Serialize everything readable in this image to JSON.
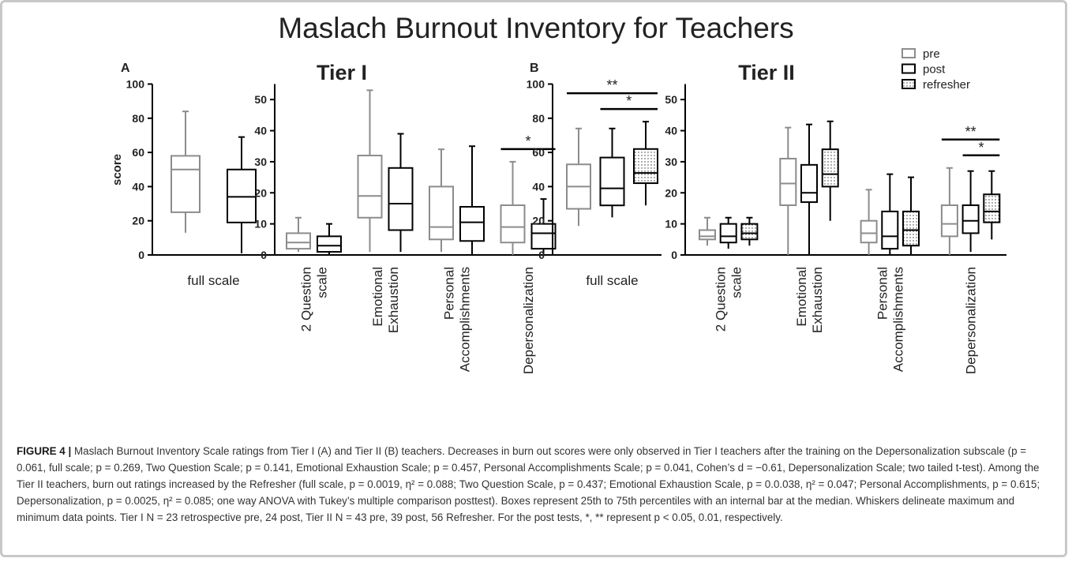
{
  "title": "Maslach Burnout Inventory for Teachers",
  "chart_data": [
    {
      "type": "box",
      "label": "A",
      "ylabel": "score",
      "categories": [
        "full scale"
      ],
      "ylim": [
        0,
        100
      ],
      "yticks": [
        0,
        20,
        40,
        60,
        80,
        100
      ],
      "series": [
        {
          "color": "#8c8c8c",
          "values": [
            {
              "min": 13,
              "q1": 25,
              "median": 50,
              "q3": 58,
              "max": 84
            }
          ]
        },
        {
          "color": "#000000",
          "values": [
            {
              "min": 1,
              "q1": 19,
              "median": 34,
              "q3": 50,
              "max": 69
            }
          ]
        }
      ]
    },
    {
      "type": "box",
      "title": "Tier I",
      "categories": [
        [
          "2 Question",
          "scale"
        ],
        [
          "Emotional",
          "Exhaustion"
        ],
        [
          "Personal",
          "Accomplishments"
        ],
        [
          "Depersonalization"
        ]
      ],
      "ylim": [
        0,
        55
      ],
      "yticks": [
        0,
        10,
        20,
        30,
        40,
        50
      ],
      "series": [
        {
          "color": "#8c8c8c",
          "values": [
            {
              "min": 1,
              "q1": 2,
              "median": 4,
              "q3": 7,
              "max": 12
            },
            {
              "min": 1,
              "q1": 12,
              "median": 19,
              "q3": 32,
              "max": 53
            },
            {
              "min": 1,
              "q1": 5,
              "median": 9,
              "q3": 22,
              "max": 34
            },
            {
              "min": 0,
              "q1": 4,
              "median": 9,
              "q3": 16,
              "max": 30
            }
          ]
        },
        {
          "color": "#000000",
          "values": [
            {
              "min": 0,
              "q1": 1,
              "median": 3,
              "q3": 6,
              "max": 10
            },
            {
              "min": 1,
              "q1": 8,
              "median": 16.5,
              "q3": 28,
              "max": 39
            },
            {
              "min": 0,
              "q1": 4.5,
              "median": 10.5,
              "q3": 15.5,
              "max": 35
            },
            {
              "min": 0,
              "q1": 2,
              "median": 7,
              "q3": 10,
              "max": 18
            }
          ]
        }
      ],
      "annotations": [
        {
          "text": "*",
          "category": 3,
          "from": 0,
          "to": 1
        }
      ]
    },
    {
      "type": "box",
      "label": "B",
      "categories": [
        "full scale"
      ],
      "ylim": [
        0,
        100
      ],
      "yticks": [
        0,
        20,
        40,
        60,
        80,
        100
      ],
      "series": [
        {
          "color": "#8c8c8c",
          "values": [
            {
              "min": 17,
              "q1": 27,
              "median": 40,
              "q3": 53,
              "max": 74
            }
          ]
        },
        {
          "color": "#000000",
          "values": [
            {
              "min": 22,
              "q1": 29,
              "median": 39,
              "q3": 57,
              "max": 74
            }
          ]
        },
        {
          "color": "#000000",
          "pattern": "dots",
          "values": [
            {
              "min": 29,
              "q1": 42,
              "median": 48,
              "q3": 62,
              "max": 78
            }
          ]
        }
      ],
      "annotations": [
        {
          "text": "*",
          "category": 0,
          "from": 1,
          "to": 2
        },
        {
          "text": "**",
          "category": 0,
          "from": 0,
          "to": 2
        }
      ]
    },
    {
      "type": "box",
      "title": "Tier II",
      "categories": [
        [
          "2 Question",
          "scale"
        ],
        [
          "Emotional",
          "Exhaustion"
        ],
        [
          "Personal",
          "Accomplishments"
        ],
        [
          "Depersonalization"
        ]
      ],
      "ylim": [
        0,
        55
      ],
      "yticks": [
        0,
        10,
        20,
        30,
        40,
        50
      ],
      "series": [
        {
          "name": "pre",
          "color": "#8c8c8c",
          "values": [
            {
              "min": 3,
              "q1": 5,
              "median": 6,
              "q3": 8,
              "max": 12
            },
            {
              "min": 0,
              "q1": 16,
              "median": 23,
              "q3": 31,
              "max": 41
            },
            {
              "min": 0,
              "q1": 4,
              "median": 7,
              "q3": 11,
              "max": 21
            },
            {
              "min": 0,
              "q1": 6,
              "median": 10,
              "q3": 16,
              "max": 28
            }
          ]
        },
        {
          "name": "post",
          "color": "#000000",
          "values": [
            {
              "min": 2,
              "q1": 4,
              "median": 6,
              "q3": 10,
              "max": 12
            },
            {
              "min": 0,
              "q1": 17,
              "median": 20,
              "q3": 29,
              "max": 42
            },
            {
              "min": 0,
              "q1": 2,
              "median": 6,
              "q3": 14,
              "max": 26
            },
            {
              "min": 1,
              "q1": 7,
              "median": 11,
              "q3": 16,
              "max": 27
            }
          ]
        },
        {
          "name": "refresher",
          "color": "#000000",
          "pattern": "dots",
          "values": [
            {
              "min": 3,
              "q1": 5,
              "median": 7,
              "q3": 10,
              "max": 12
            },
            {
              "min": 11,
              "q1": 22,
              "median": 26,
              "q3": 34,
              "max": 43
            },
            {
              "min": 0,
              "q1": 3,
              "median": 8,
              "q3": 14,
              "max": 25
            },
            {
              "min": 5,
              "q1": 10.5,
              "median": 14,
              "q3": 19.5,
              "max": 27
            }
          ]
        }
      ],
      "annotations": [
        {
          "text": "*",
          "category": 3,
          "from": 1,
          "to": 2
        },
        {
          "text": "**",
          "category": 3,
          "from": 0,
          "to": 2
        }
      ]
    }
  ],
  "caption": {
    "label": "FIGURE 4 |",
    "text": "Maslach Burnout Inventory Scale ratings from Tier I (A) and Tier II (B) teachers. Decreases in burn out scores were only observed in Tier I teachers after the training on the Depersonalization subscale (p = 0.061, full scale; p = 0.269, Two Question Scale; p = 0.141, Emotional Exhaustion Scale; p = 0.457, Personal Accomplishments Scale; p = 0.041, Cohen’s d = −0.61, Depersonalization Scale; two tailed t-test). Among the Tier II teachers, burn out ratings increased by the Refresher (full scale, p = 0.0019, η² = 0.088; Two Question Scale, p = 0.437; Emotional Exhaustion Scale, p = 0.0.038, η² = 0.047; Personal Accomplishments, p = 0.615; Depersonalization, p = 0.0025, η² = 0.085; one way ANOVA with Tukey’s multiple comparison posttest). Boxes represent 25th to 75th percentiles with an internal bar at the median. Whiskers delineate maximum and minimum data points. Tier I N = 23 retrospective pre, 24 post, Tier II N = 43 pre, 39 post, 56 Refresher. For the post tests, *, ** represent p < 0.05, 0.01, respectively."
  }
}
